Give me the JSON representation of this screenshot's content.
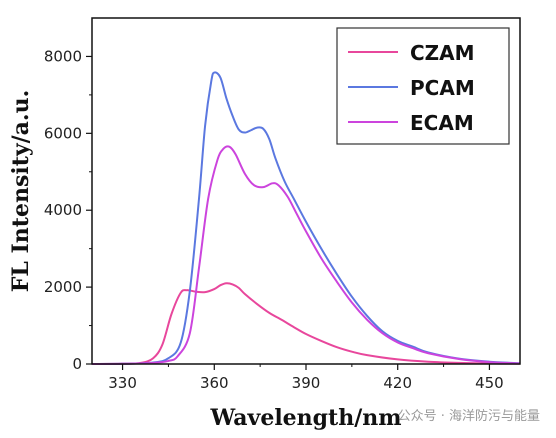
{
  "chart_data": {
    "type": "line",
    "xlabel": "Wavelength/nm",
    "ylabel": "FL Intensity/a.u.",
    "xlim": [
      320,
      460
    ],
    "ylim": [
      0,
      9000
    ],
    "xticks": [
      330,
      360,
      390,
      420,
      450
    ],
    "yticks": [
      0,
      2000,
      4000,
      6000,
      8000
    ],
    "legend_position": "top-right",
    "grid": false,
    "series": [
      {
        "name": "CZAM",
        "color": "#e8479c",
        "points": [
          [
            320,
            0
          ],
          [
            330,
            5
          ],
          [
            336,
            30
          ],
          [
            340,
            150
          ],
          [
            343,
            500
          ],
          [
            346,
            1300
          ],
          [
            349,
            1850
          ],
          [
            351,
            1920
          ],
          [
            354,
            1880
          ],
          [
            357,
            1870
          ],
          [
            360,
            1950
          ],
          [
            362,
            2050
          ],
          [
            364,
            2100
          ],
          [
            366,
            2070
          ],
          [
            368,
            1980
          ],
          [
            370,
            1820
          ],
          [
            374,
            1560
          ],
          [
            378,
            1330
          ],
          [
            382,
            1150
          ],
          [
            386,
            960
          ],
          [
            390,
            780
          ],
          [
            395,
            600
          ],
          [
            400,
            440
          ],
          [
            405,
            320
          ],
          [
            410,
            230
          ],
          [
            420,
            120
          ],
          [
            430,
            60
          ],
          [
            440,
            30
          ],
          [
            450,
            15
          ],
          [
            460,
            5
          ]
        ]
      },
      {
        "name": "PCAM",
        "color": "#5b78e0",
        "points": [
          [
            320,
            0
          ],
          [
            330,
            5
          ],
          [
            340,
            40
          ],
          [
            345,
            150
          ],
          [
            349,
            550
          ],
          [
            352,
            1900
          ],
          [
            355,
            4300
          ],
          [
            357,
            6200
          ],
          [
            359,
            7350
          ],
          [
            360,
            7580
          ],
          [
            362,
            7450
          ],
          [
            364,
            6900
          ],
          [
            366,
            6450
          ],
          [
            368,
            6100
          ],
          [
            370,
            6020
          ],
          [
            372,
            6080
          ],
          [
            374,
            6150
          ],
          [
            376,
            6120
          ],
          [
            378,
            5850
          ],
          [
            380,
            5350
          ],
          [
            383,
            4750
          ],
          [
            386,
            4300
          ],
          [
            390,
            3700
          ],
          [
            395,
            3000
          ],
          [
            400,
            2350
          ],
          [
            405,
            1750
          ],
          [
            410,
            1250
          ],
          [
            415,
            850
          ],
          [
            420,
            600
          ],
          [
            425,
            450
          ],
          [
            430,
            300
          ],
          [
            440,
            140
          ],
          [
            450,
            60
          ],
          [
            460,
            20
          ]
        ]
      },
      {
        "name": "ECAM",
        "color": "#cc44dd",
        "points": [
          [
            320,
            0
          ],
          [
            330,
            5
          ],
          [
            340,
            30
          ],
          [
            345,
            80
          ],
          [
            348,
            200
          ],
          [
            352,
            800
          ],
          [
            355,
            2500
          ],
          [
            358,
            4300
          ],
          [
            361,
            5300
          ],
          [
            363,
            5600
          ],
          [
            365,
            5650
          ],
          [
            367,
            5450
          ],
          [
            370,
            4950
          ],
          [
            373,
            4650
          ],
          [
            376,
            4600
          ],
          [
            379,
            4700
          ],
          [
            381,
            4650
          ],
          [
            384,
            4350
          ],
          [
            387,
            3900
          ],
          [
            390,
            3450
          ],
          [
            395,
            2750
          ],
          [
            400,
            2150
          ],
          [
            405,
            1600
          ],
          [
            410,
            1150
          ],
          [
            415,
            800
          ],
          [
            420,
            560
          ],
          [
            425,
            410
          ],
          [
            430,
            280
          ],
          [
            440,
            130
          ],
          [
            450,
            50
          ],
          [
            460,
            15
          ]
        ]
      }
    ]
  },
  "watermark": "公众号 · 海洋防污与能量"
}
